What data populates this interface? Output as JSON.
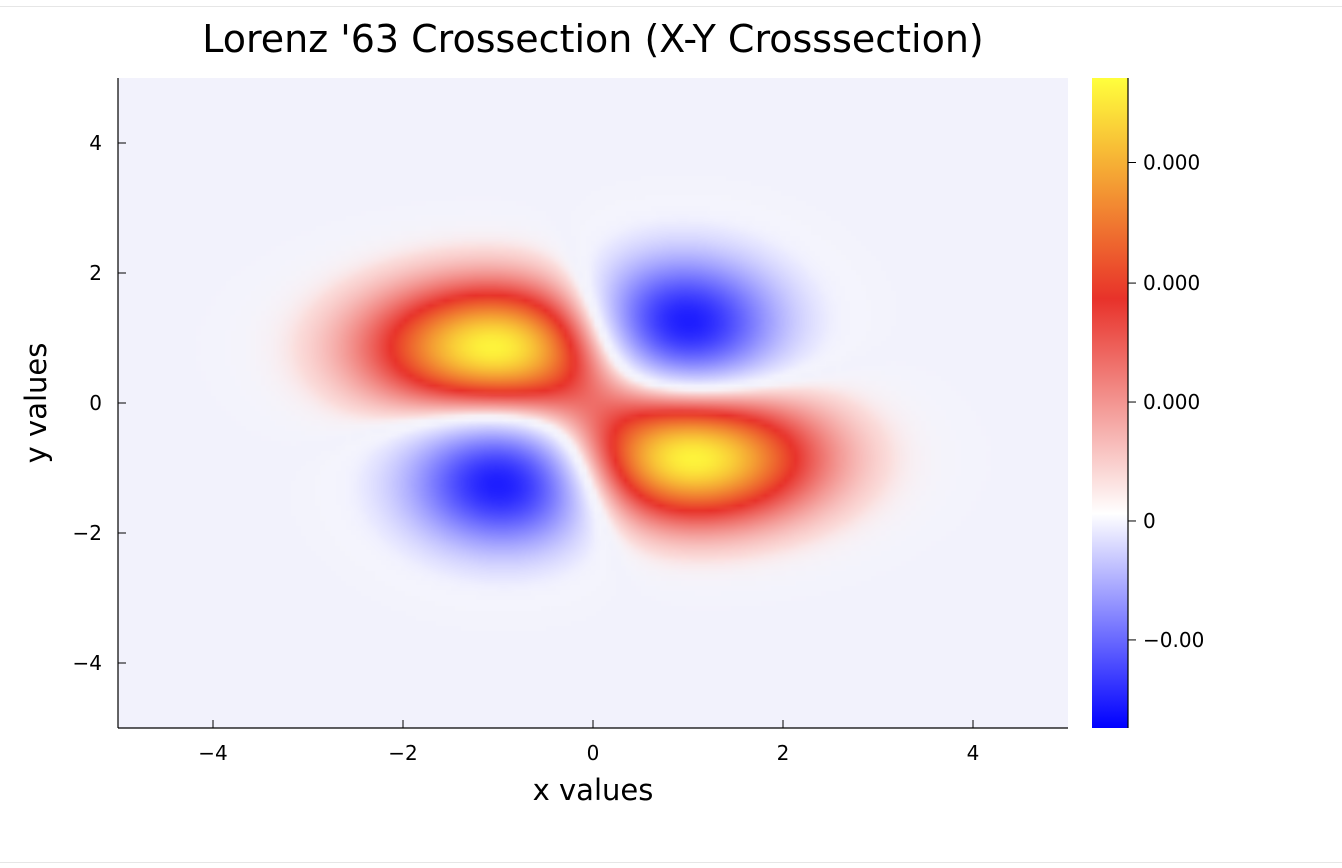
{
  "chart_data": {
    "type": "heatmap",
    "title": "Lorenz '63 Crossection (X-Y Crosssection)",
    "xlabel": "x values",
    "ylabel": "y values",
    "xlim": [
      -5,
      5
    ],
    "ylim": [
      -5,
      5
    ],
    "x_ticks": [
      -4,
      -2,
      0,
      2,
      4
    ],
    "y_ticks": [
      -4,
      -2,
      0,
      2,
      4
    ],
    "x_tick_labels": [
      "−4",
      "−2",
      "0",
      "2",
      "4"
    ],
    "y_tick_labels": [
      "−4",
      "−2",
      "0",
      "2",
      "4"
    ],
    "grid": false,
    "colormap": {
      "stops": [
        {
          "pos": 0.0,
          "color": "#0000ff"
        },
        {
          "pos": 0.33,
          "color": "#ffffff"
        },
        {
          "pos": 0.66,
          "color": "#e8322a"
        },
        {
          "pos": 1.0,
          "color": "#ffff3c"
        }
      ]
    },
    "colorbar": {
      "ticks": [
        {
          "label": "0.000",
          "frac": 0.87
        },
        {
          "label": "0.000",
          "frac": 0.6845
        },
        {
          "label": "0.000",
          "frac": 0.5015
        },
        {
          "label": "0",
          "frac": 0.3185
        },
        {
          "label": "−0.00",
          "frac": 0.1355
        }
      ]
    },
    "features": [
      {
        "kind": "positive-lobe",
        "center": [
          -1.0,
          0.85
        ],
        "peak": 1.0
      },
      {
        "kind": "positive-lobe",
        "center": [
          1.0,
          -0.85
        ],
        "peak": 1.0
      },
      {
        "kind": "negative-lobe",
        "center": [
          0.9,
          1.2
        ],
        "peak": -1.0
      },
      {
        "kind": "negative-lobe",
        "center": [
          -0.9,
          -1.2
        ],
        "peak": -1.0
      }
    ]
  }
}
